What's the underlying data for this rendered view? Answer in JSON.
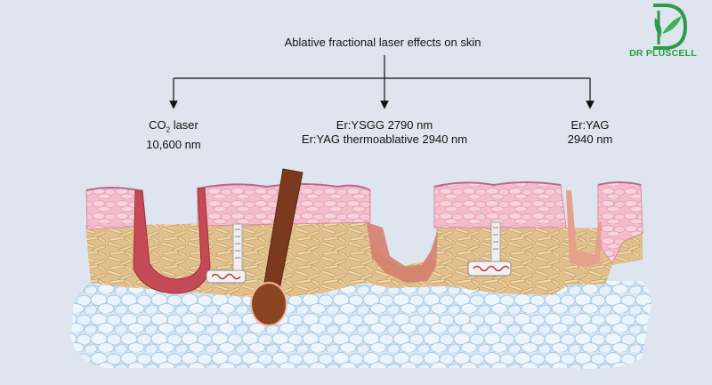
{
  "diagram": {
    "title": "Ablative fractional laser effects on skin",
    "branches": [
      {
        "name": "co2",
        "line1_prefix": "CO",
        "line1_sub": "2",
        "line1_suffix": " laser",
        "line2": "10,600 nm"
      },
      {
        "name": "ysgg",
        "line1": "Er:YSGG 2790 nm",
        "line2": "Er:YAG thermoablative 2940 nm"
      },
      {
        "name": "eryag",
        "line1": "Er:YAG",
        "line2": "2940 nm"
      }
    ]
  },
  "brand": {
    "name": "DR PLUSCELL",
    "color": "#2e9a46"
  },
  "colors": {
    "background": "#dfe5ee",
    "epidermis": "#f2b9c8",
    "dermis": "#e6c38d",
    "fat": "#cfe4f6",
    "coagulation": "#c64a52",
    "hair": "#7b3a1e"
  }
}
